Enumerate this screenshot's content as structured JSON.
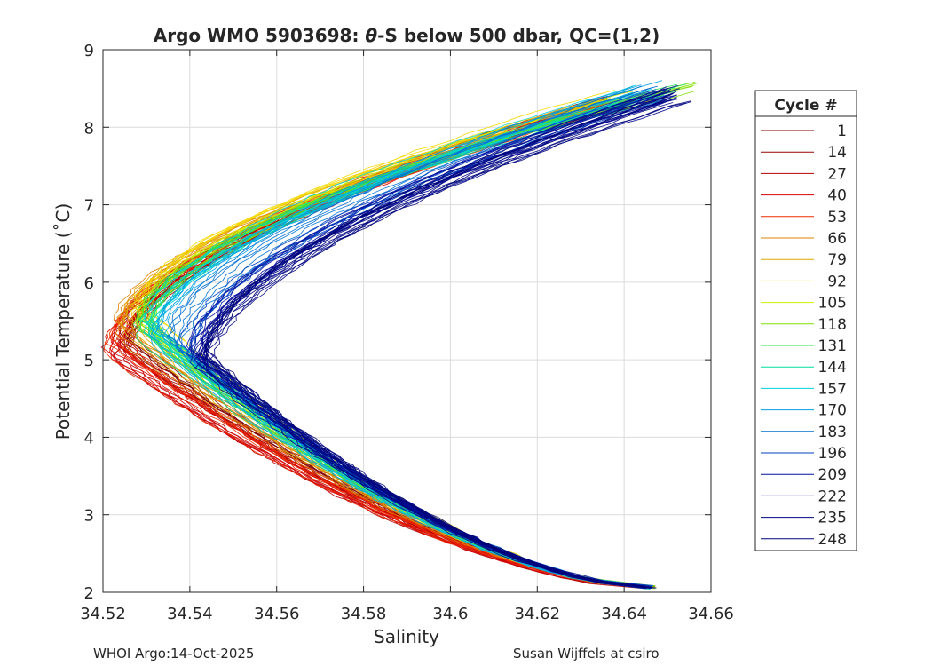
{
  "chart_data": {
    "type": "line",
    "title": "Argo WMO 5903698: θ-S below 500 dbar,  QC=(1,2)",
    "title_parts": {
      "prefix": "Argo WMO 5903698: ",
      "theta": "θ",
      "suffix": "-S below 500 dbar,  QC=(1,2)"
    },
    "xlabel": "Salinity",
    "ylabel": "Potential Temperature (˚C)",
    "xlim": [
      34.52,
      34.66
    ],
    "ylim": [
      2,
      9
    ],
    "xticks": [
      34.52,
      34.54,
      34.56,
      34.58,
      34.6,
      34.62,
      34.64,
      34.66
    ],
    "xtick_labels": [
      "34.52",
      "34.54",
      "34.56",
      "34.58",
      "34.6",
      "34.62",
      "34.64",
      "34.66"
    ],
    "yticks": [
      2,
      3,
      4,
      5,
      6,
      7,
      8,
      9
    ],
    "ytick_labels": [
      "2",
      "3",
      "4",
      "5",
      "6",
      "7",
      "8",
      "9"
    ],
    "grid": true,
    "legend_title": "Cycle #",
    "legend_position": "outside-right",
    "series": [
      {
        "name": "1",
        "color": "#800000",
        "salinity_min": 34.525,
        "temp_at_min": 5.3,
        "end_salinity_top": 34.635,
        "end_temp_top": 8.3
      },
      {
        "name": "14",
        "color": "#9c0000",
        "salinity_min": 34.524,
        "temp_at_min": 5.2,
        "end_salinity_top": 34.636,
        "end_temp_top": 8.3
      },
      {
        "name": "27",
        "color": "#b80000",
        "salinity_min": 34.523,
        "temp_at_min": 5.1,
        "end_salinity_top": 34.637,
        "end_temp_top": 8.3
      },
      {
        "name": "40",
        "color": "#d40000",
        "salinity_min": 34.522,
        "temp_at_min": 5.1,
        "end_salinity_top": 34.637,
        "end_temp_top": 8.3
      },
      {
        "name": "53",
        "color": "#ef2b00",
        "salinity_min": 34.522,
        "temp_at_min": 5.2,
        "end_salinity_top": 34.638,
        "end_temp_top": 8.3
      },
      {
        "name": "66",
        "color": "#e08000",
        "salinity_min": 34.524,
        "temp_at_min": 5.4,
        "end_salinity_top": 34.637,
        "end_temp_top": 8.3
      },
      {
        "name": "79",
        "color": "#e0a800",
        "salinity_min": 34.526,
        "temp_at_min": 5.5,
        "end_salinity_top": 34.638,
        "end_temp_top": 8.35
      },
      {
        "name": "92",
        "color": "#f5d800",
        "salinity_min": 34.528,
        "temp_at_min": 5.6,
        "end_salinity_top": 34.64,
        "end_temp_top": 8.4
      },
      {
        "name": "105",
        "color": "#c8f000",
        "salinity_min": 34.529,
        "temp_at_min": 5.5,
        "end_salinity_top": 34.645,
        "end_temp_top": 8.45
      },
      {
        "name": "118",
        "color": "#7fe000",
        "salinity_min": 34.53,
        "temp_at_min": 5.5,
        "end_salinity_top": 34.655,
        "end_temp_top": 8.5
      },
      {
        "name": "131",
        "color": "#2ee050",
        "salinity_min": 34.529,
        "temp_at_min": 5.4,
        "end_salinity_top": 34.652,
        "end_temp_top": 8.5
      },
      {
        "name": "144",
        "color": "#00e0a0",
        "salinity_min": 34.53,
        "temp_at_min": 5.4,
        "end_salinity_top": 34.647,
        "end_temp_top": 8.45
      },
      {
        "name": "157",
        "color": "#00d0e0",
        "salinity_min": 34.531,
        "temp_at_min": 5.4,
        "end_salinity_top": 34.644,
        "end_temp_top": 8.45
      },
      {
        "name": "170",
        "color": "#00a0e0",
        "salinity_min": 34.533,
        "temp_at_min": 5.3,
        "end_salinity_top": 34.645,
        "end_temp_top": 8.5
      },
      {
        "name": "183",
        "color": "#0070d0",
        "salinity_min": 34.536,
        "temp_at_min": 5.2,
        "end_salinity_top": 34.647,
        "end_temp_top": 8.45
      },
      {
        "name": "196",
        "color": "#0040c0",
        "salinity_min": 34.539,
        "temp_at_min": 5.1,
        "end_salinity_top": 34.649,
        "end_temp_top": 8.45
      },
      {
        "name": "209",
        "color": "#0010a0",
        "salinity_min": 34.541,
        "temp_at_min": 5.0,
        "end_salinity_top": 34.651,
        "end_temp_top": 8.45
      },
      {
        "name": "222",
        "color": "#000890",
        "salinity_min": 34.542,
        "temp_at_min": 5.0,
        "end_salinity_top": 34.652,
        "end_temp_top": 8.42
      },
      {
        "name": "235",
        "color": "#000680",
        "salinity_min": 34.543,
        "temp_at_min": 5.0,
        "end_salinity_top": 34.652,
        "end_temp_top": 8.42
      },
      {
        "name": "248",
        "color": "#00047a",
        "salinity_min": 34.543,
        "temp_at_min": 5.0,
        "end_salinity_top": 34.652,
        "end_temp_top": 8.42
      }
    ],
    "bottom_end": {
      "salinity": 34.646,
      "temp": 2.05
    }
  },
  "footer": {
    "left": "WHOI Argo:14-Oct-2025",
    "right": "Susan Wijffels at csiro"
  }
}
